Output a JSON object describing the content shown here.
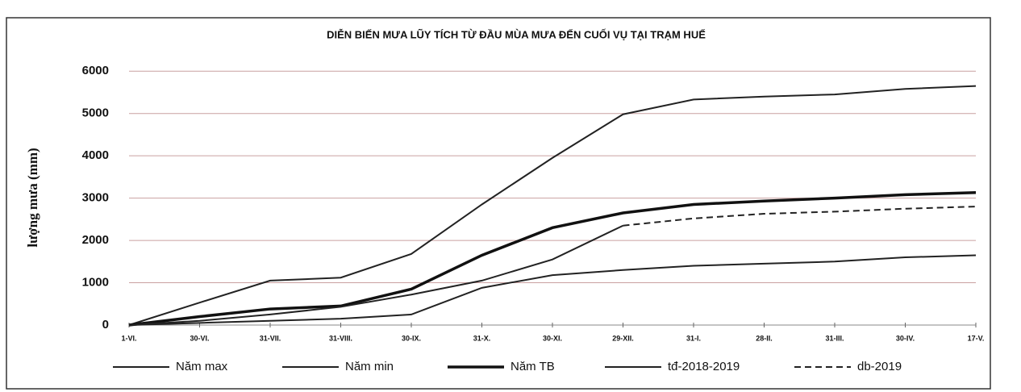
{
  "chart_data": {
    "type": "line",
    "title": "DIỄN BIẾN MƯA LŨY TÍCH TỪ ĐẦU MÙA MƯA ĐẾN CUỐI VỤ TẠI TRẠM HUẾ",
    "y_label": "lượng mưa (mm)",
    "categories": [
      "1-VI.",
      "30-VI.",
      "31-VII.",
      "31-VIII.",
      "30-IX.",
      "31-X.",
      "30-XI.",
      "29-XII.",
      "31-I.",
      "28-II.",
      "31-III.",
      "30-IV.",
      "17-V."
    ],
    "ylim": [
      0,
      6500
    ],
    "yticks": [
      0,
      1000,
      2000,
      3000,
      4000,
      5000,
      6000
    ],
    "grid": true,
    "grid_color": "#c9a0a0",
    "legend": "bottom",
    "series": [
      {
        "name": "Năm max",
        "color": "#222",
        "values": [
          0,
          530,
          1050,
          1120,
          1680,
          2850,
          3950,
          4980,
          5330,
          5400,
          5450,
          5580,
          5650
        ]
      },
      {
        "name": "Năm min",
        "color": "#222",
        "values": [
          0,
          50,
          100,
          150,
          250,
          880,
          1180,
          1300,
          1400,
          1450,
          1500,
          1600,
          1650
        ]
      },
      {
        "name": "Năm TB",
        "color": "#111",
        "values": [
          0,
          200,
          380,
          450,
          850,
          1650,
          2300,
          2650,
          2850,
          2930,
          3000,
          3080,
          3130
        ]
      },
      {
        "name": "tđ-2018-2019",
        "color": "#222",
        "values": [
          0,
          100,
          250,
          430,
          720,
          1050,
          1550,
          2350,
          null,
          null,
          null,
          null,
          null
        ]
      },
      {
        "name": "db-2019",
        "color": "#222",
        "dashed": true,
        "values": [
          null,
          null,
          null,
          null,
          null,
          null,
          null,
          2350,
          2520,
          2630,
          2680,
          2750,
          2800
        ]
      }
    ]
  }
}
